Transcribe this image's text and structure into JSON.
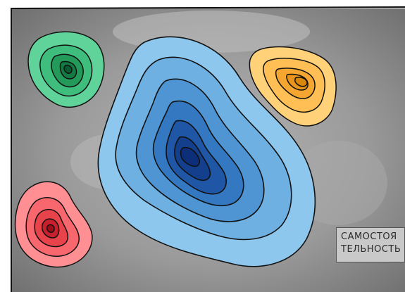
{
  "caption": {
    "line1": "САМОСТОЯ",
    "line2": "ТЕЛЬНОСТЬ"
  },
  "palette": {
    "background_gray": "#8f8f8f",
    "frame": "#111111",
    "blue_outer": "#8ec7ee",
    "blue_core": "#0d2e78",
    "green_outer": "#5fd39a",
    "green_core": "#0b5a32",
    "orange_outer": "#ffd27a",
    "orange_core": "#d9860f",
    "red_outer": "#ff8f93",
    "red_core": "#9e0d18"
  }
}
